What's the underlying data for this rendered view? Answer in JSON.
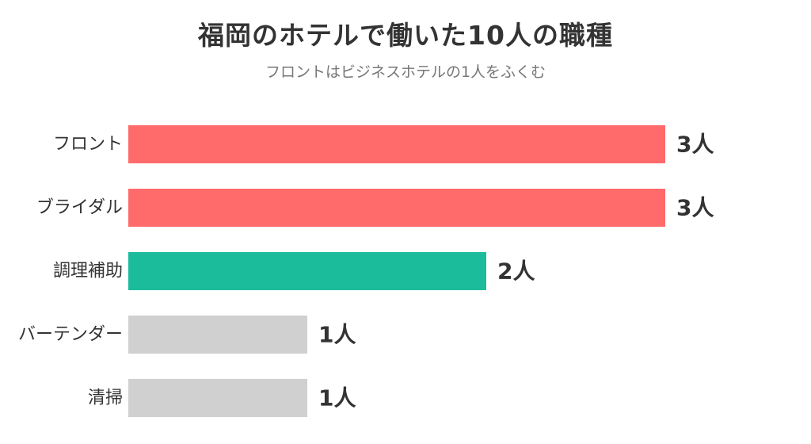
{
  "chart_data": {
    "type": "bar",
    "orientation": "horizontal",
    "title": "福岡のホテルで働いた10人の職種",
    "subtitle": "フロントはビジネスホテルの1人をふくむ",
    "unit": "人",
    "categories": [
      "フロント",
      "ブライダル",
      "調理補助",
      "バーテンダー",
      "清掃"
    ],
    "values": [
      3,
      3,
      2,
      1,
      1
    ],
    "value_labels": [
      "3人",
      "3人",
      "2人",
      "1人",
      "1人"
    ],
    "colors": [
      "#ff6b6b",
      "#ff6b6b",
      "#1abc9c",
      "#d0d0d0",
      "#d0d0d0"
    ],
    "xlim": [
      0,
      3
    ],
    "grid": false,
    "legend": "none"
  }
}
